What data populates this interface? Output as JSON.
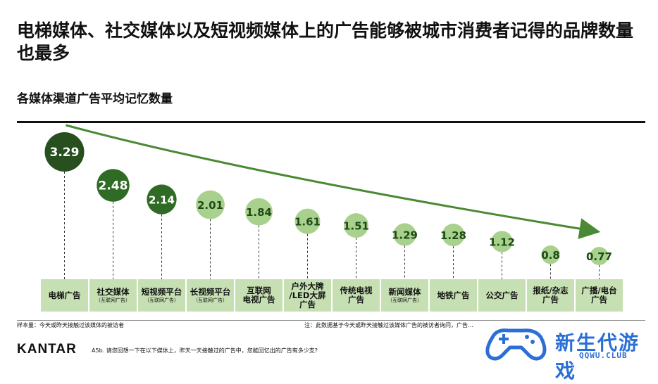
{
  "title": "电梯媒体、社交媒体以及短视频媒体上的广告能够被城市消费者记得的品牌数量也最多",
  "subtitle": "各媒体渠道广告平均记忆数量",
  "colors": {
    "dark": "#27501e",
    "mid": "#2f6b25",
    "light": "#a9d18e",
    "label_bg": "#c6e0b4",
    "arrow": "#4a8a34"
  },
  "chart_data": {
    "type": "bubble",
    "categories": [
      {
        "main": "电梯广告",
        "note": ""
      },
      {
        "main": "社交媒体",
        "note": "（互联网广告）"
      },
      {
        "main": "短视频平台",
        "note": "（互联网广告）"
      },
      {
        "main": "长视频平台",
        "note": "（互联网广告）"
      },
      {
        "main": "互联网\n电视广告",
        "note": ""
      },
      {
        "main": "户外大牌\n/LED大屏\n广告",
        "note": ""
      },
      {
        "main": "传统电视\n广告",
        "note": ""
      },
      {
        "main": "新闻媒体",
        "note": "（互联网广告）"
      },
      {
        "main": "地铁广告",
        "note": ""
      },
      {
        "main": "公交广告",
        "note": ""
      },
      {
        "main": "报纸/杂志\n广告",
        "note": ""
      },
      {
        "main": "广播/电台\n广告",
        "note": ""
      }
    ],
    "values": [
      3.29,
      2.48,
      2.14,
      2.01,
      1.84,
      1.61,
      1.51,
      1.29,
      1.28,
      1.12,
      0.8,
      0.77
    ],
    "labels": [
      "3.29",
      "2.48",
      "2.14",
      "2.01",
      "1.84",
      "1.61",
      "1.51",
      "1.29",
      "1.28",
      "1.12",
      "0.8",
      "0.77"
    ],
    "dark_count": 3
  },
  "footer": {
    "sample": "样本量：今天或昨天接触过该媒体的被访者",
    "note": "注：此数据基于今天或昨天接触过该媒体广告的被访者询问，广告…",
    "logo": "KANTAR",
    "question": "A5b. 请您回想一下在以下媒体上，昨天一天接触过的广告中，您能回忆出的广告有多少支?"
  },
  "watermark": {
    "name": "新生代游戏",
    "domain": "QQWU.CLUB"
  }
}
